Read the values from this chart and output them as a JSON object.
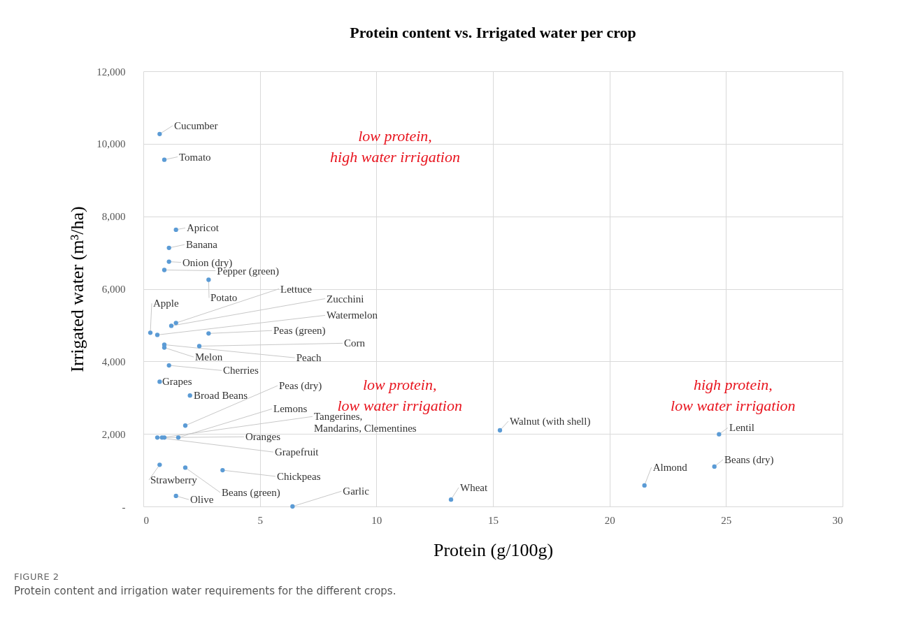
{
  "chart_data": {
    "type": "scatter",
    "title": "Protein content vs. Irrigated water per crop",
    "xlabel": "Protein (g/100g)",
    "ylabel": "Irrigated water (m³/ha)",
    "xlim": [
      0,
      30
    ],
    "xticks": [
      0,
      5,
      10,
      15,
      20,
      25,
      30
    ],
    "ylim": [
      0,
      12000
    ],
    "yticks": [
      {
        "value": 0,
        "label": "-"
      },
      {
        "value": 2000,
        "label": "2,000"
      },
      {
        "value": 4000,
        "label": "4,000"
      },
      {
        "value": 6000,
        "label": "6,000"
      },
      {
        "value": 8000,
        "label": "8,000"
      },
      {
        "value": 10000,
        "label": "10,000"
      },
      {
        "value": 12000,
        "label": "12,000"
      }
    ],
    "grid": true,
    "marker": "circle",
    "annotations": [
      "low protein, high water irrigation",
      "low protein, low water irrigation",
      "high protein, low water irrigation",
      "FIGURE 2",
      "Protein content and irrigation water requirements for the different crops."
    ],
    "series": [
      {
        "name": "Cucumber",
        "color": "#5b9bd5",
        "x": [
          0.7
        ],
        "values": [
          10270
        ]
      },
      {
        "name": "Tomato",
        "color": "#5b9bd5",
        "x": [
          0.9
        ],
        "values": [
          9560
        ]
      },
      {
        "name": "Apricot",
        "color": "#5b9bd5",
        "x": [
          1.4
        ],
        "values": [
          7630
        ]
      },
      {
        "name": "Banana",
        "color": "#5b9bd5",
        "x": [
          1.1
        ],
        "values": [
          7130
        ]
      },
      {
        "name": "Onion (dry)",
        "color": "#5b9bd5",
        "x": [
          1.1
        ],
        "values": [
          6750
        ]
      },
      {
        "name": "Pepper (green)",
        "color": "#5b9bd5",
        "x": [
          0.9
        ],
        "values": [
          6520
        ]
      },
      {
        "name": "Potato",
        "color": "#5b9bd5",
        "x": [
          2.8
        ],
        "values": [
          6250
        ]
      },
      {
        "name": "Lettuce",
        "color": "#5b9bd5",
        "x": [
          1.4
        ],
        "values": [
          5060
        ]
      },
      {
        "name": "Zucchini",
        "color": "#5b9bd5",
        "x": [
          1.2
        ],
        "values": [
          4980
        ]
      },
      {
        "name": "Apple",
        "color": "#5b9bd5",
        "x": [
          0.3
        ],
        "values": [
          4790
        ]
      },
      {
        "name": "Watermelon",
        "color": "#5b9bd5",
        "x": [
          0.6
        ],
        "values": [
          4730
        ]
      },
      {
        "name": "Peas (green)",
        "color": "#5b9bd5",
        "x": [
          2.8
        ],
        "values": [
          4770
        ]
      },
      {
        "name": "Corn",
        "color": "#5b9bd5",
        "x": [
          2.4
        ],
        "values": [
          4420
        ]
      },
      {
        "name": "Melon",
        "color": "#5b9bd5",
        "x": [
          0.9
        ],
        "values": [
          4380
        ]
      },
      {
        "name": "Peach",
        "color": "#5b9bd5",
        "x": [
          0.9
        ],
        "values": [
          4460
        ]
      },
      {
        "name": "Cherries",
        "color": "#5b9bd5",
        "x": [
          1.1
        ],
        "values": [
          3890
        ]
      },
      {
        "name": "Grapes",
        "color": "#5b9bd5",
        "x": [
          0.7
        ],
        "values": [
          3440
        ]
      },
      {
        "name": "Broad Beans",
        "color": "#5b9bd5",
        "x": [
          2.0
        ],
        "values": [
          3060
        ]
      },
      {
        "name": "Peas (dry)",
        "color": "#5b9bd5",
        "x": [
          1.8
        ],
        "values": [
          2230
        ]
      },
      {
        "name": "Lemons",
        "color": "#5b9bd5",
        "x": [
          1.5
        ],
        "values": [
          1900
        ]
      },
      {
        "name": "Tangerines, Mandarins, Clementines",
        "color": "#5b9bd5",
        "x": [
          0.8
        ],
        "values": [
          1900
        ]
      },
      {
        "name": "Oranges",
        "color": "#5b9bd5",
        "x": [
          0.9
        ],
        "values": [
          1900
        ]
      },
      {
        "name": "Grapefruit",
        "color": "#5b9bd5",
        "x": [
          0.6
        ],
        "values": [
          1900
        ]
      },
      {
        "name": "Strawberry",
        "color": "#5b9bd5",
        "x": [
          0.7
        ],
        "values": [
          1150
        ]
      },
      {
        "name": "Beans (green)",
        "color": "#5b9bd5",
        "x": [
          1.8
        ],
        "values": [
          1070
        ]
      },
      {
        "name": "Chickpeas",
        "color": "#5b9bd5",
        "x": [
          3.4
        ],
        "values": [
          1000
        ]
      },
      {
        "name": "Olive",
        "color": "#5b9bd5",
        "x": [
          1.4
        ],
        "values": [
          290
        ]
      },
      {
        "name": "Garlic",
        "color": "#5b9bd5",
        "x": [
          6.4
        ],
        "values": [
          0
        ]
      },
      {
        "name": "Wheat",
        "color": "#5b9bd5",
        "x": [
          13.2
        ],
        "values": [
          190
        ]
      },
      {
        "name": "Walnut (with shell)",
        "color": "#5b9bd5",
        "x": [
          15.3
        ],
        "values": [
          2100
        ]
      },
      {
        "name": "Lentil",
        "color": "#5b9bd5",
        "x": [
          24.7
        ],
        "values": [
          1990
        ]
      },
      {
        "name": "Beans (dry)",
        "color": "#5b9bd5",
        "x": [
          24.5
        ],
        "values": [
          1100
        ]
      },
      {
        "name": "Almond",
        "color": "#5b9bd5",
        "x": [
          21.5
        ],
        "values": [
          580
        ]
      }
    ]
  }
}
